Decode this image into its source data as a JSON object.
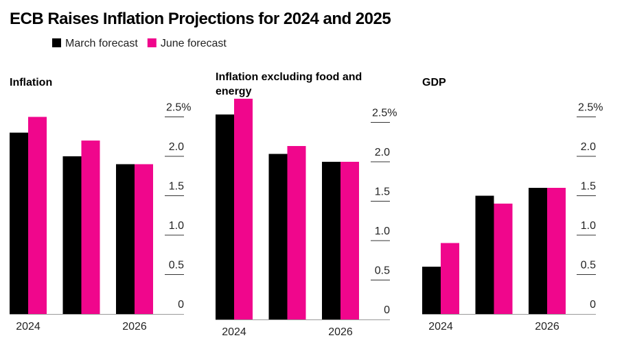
{
  "title": "ECB Raises Inflation Projections for 2024 and 2025",
  "legend": [
    {
      "name": "March forecast",
      "color": "#000000"
    },
    {
      "name": "June forecast",
      "color": "#f0068c"
    }
  ],
  "chart_data": [
    {
      "type": "bar",
      "title": "Inflation",
      "categories": [
        "2024",
        null,
        "2026"
      ],
      "series": [
        {
          "values": [
            2.3,
            2.0,
            1.9
          ]
        },
        {
          "values": [
            2.5,
            2.2,
            1.9
          ]
        }
      ],
      "ylim": [
        0,
        2.8
      ],
      "yticks": [
        0,
        0.5,
        {
          "value": 1,
          "label": "1.0"
        },
        1.5,
        {
          "value": 2,
          "label": "2.0"
        },
        {
          "value": 2.5,
          "label": "2.5%"
        }
      ]
    },
    {
      "type": "bar",
      "title": "Inflation excluding food and energy",
      "categories": [
        "2024",
        null,
        "2026"
      ],
      "series": [
        {
          "values": [
            2.6,
            2.1,
            2.0
          ]
        },
        {
          "values": [
            2.8,
            2.2,
            2.0
          ]
        }
      ],
      "ylim": [
        0,
        2.8
      ],
      "yticks": [
        0,
        0.5,
        {
          "value": 1,
          "label": "1.0"
        },
        1.5,
        {
          "value": 2,
          "label": "2.0"
        },
        {
          "value": 2.5,
          "label": "2.5%"
        }
      ]
    },
    {
      "type": "bar",
      "title": "GDP",
      "categories": [
        "2024",
        null,
        "2026"
      ],
      "series": [
        {
          "values": [
            0.6,
            1.5,
            1.6
          ]
        },
        {
          "values": [
            0.9,
            1.4,
            1.6
          ]
        }
      ],
      "ylim": [
        0,
        2.8
      ],
      "yticks": [
        0,
        0.5,
        {
          "value": 1,
          "label": "1.0"
        },
        1.5,
        {
          "value": 2,
          "label": "2.0"
        },
        {
          "value": 2.5,
          "label": "2.5%"
        }
      ]
    }
  ]
}
